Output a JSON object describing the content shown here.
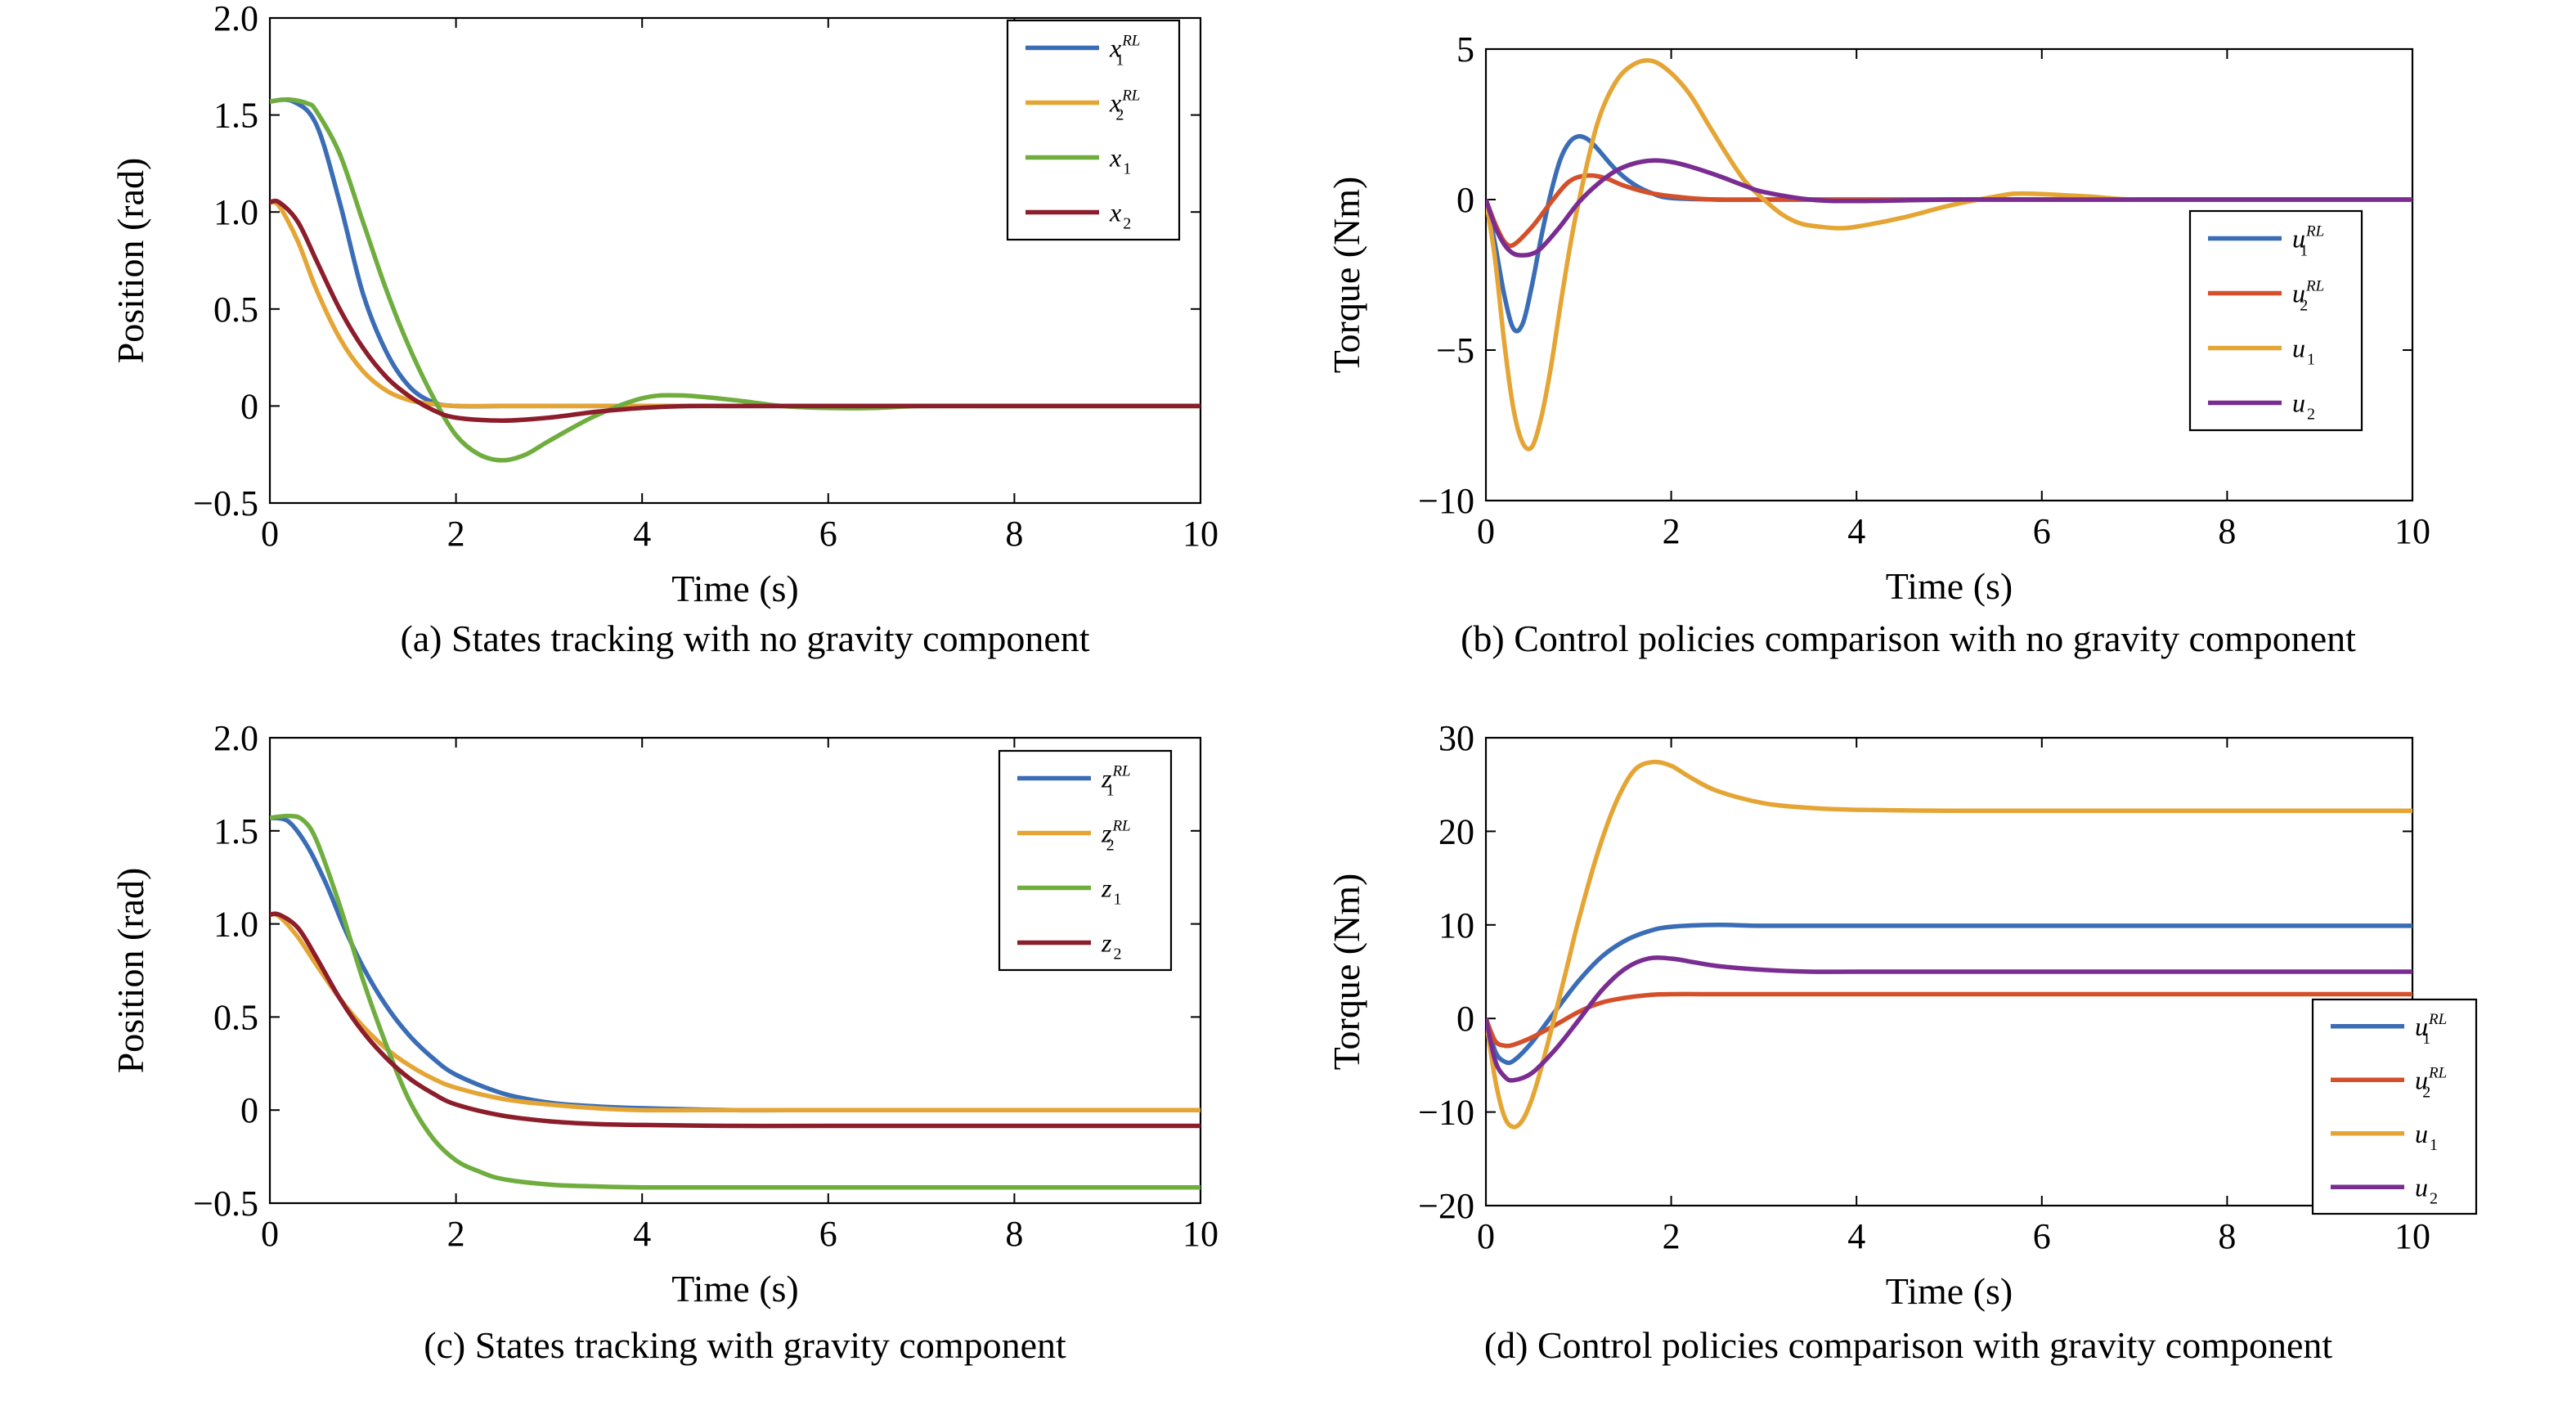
{
  "colors": {
    "blue": "#3a6db5",
    "orange": "#e5a535",
    "green": "#6fad3f",
    "darkred": "#8c1d2b",
    "red": "#d4502a",
    "purple": "#7a2d91"
  },
  "chart_data": [
    {
      "id": "a",
      "type": "line",
      "caption": "(a) States tracking with no gravity component",
      "xlabel": "Time (s)",
      "ylabel": "Position (rad)",
      "xlim": [
        0,
        10
      ],
      "ylim": [
        -0.5,
        2.0
      ],
      "xticks": [
        0,
        2,
        4,
        6,
        8,
        10
      ],
      "xtick_labels": [
        "0",
        "2",
        "4",
        "6",
        "8",
        "10"
      ],
      "yticks": [
        -0.5,
        0,
        0.5,
        1.0,
        1.5,
        2.0
      ],
      "ytick_labels": [
        "−0.5",
        "0",
        "0.5",
        "1.0",
        "1.5",
        "2.0"
      ],
      "legend_position": "top-right",
      "series": [
        {
          "name": "x",
          "sub": "1",
          "sup": "RL",
          "color": "#3a6db5",
          "x": [
            0,
            0.25,
            0.5,
            0.75,
            1.0,
            1.25,
            1.5,
            1.75,
            2.0,
            2.5,
            3.0,
            4.0,
            5.0,
            6.0,
            8.0,
            10.0
          ],
          "y": [
            1.57,
            1.57,
            1.45,
            1.05,
            0.58,
            0.28,
            0.1,
            0.02,
            0.0,
            0.0,
            0.0,
            0.0,
            0.0,
            0.0,
            0.0,
            0.0
          ]
        },
        {
          "name": "x",
          "sub": "2",
          "sup": "RL",
          "color": "#e5a535",
          "x": [
            0,
            0.1,
            0.3,
            0.5,
            0.75,
            1.0,
            1.25,
            1.5,
            1.75,
            2.0,
            2.5,
            3.0,
            4.0,
            6.0,
            8.0,
            10.0
          ],
          "y": [
            1.05,
            1.03,
            0.85,
            0.6,
            0.35,
            0.18,
            0.08,
            0.03,
            0.01,
            0.0,
            0.0,
            0.0,
            0.0,
            0.0,
            0.0,
            0.0
          ]
        },
        {
          "name": "x",
          "sub": "1",
          "sup": "",
          "color": "#6fad3f",
          "x": [
            0,
            0.2,
            0.4,
            0.5,
            0.75,
            1.0,
            1.25,
            1.5,
            1.75,
            2.0,
            2.25,
            2.5,
            2.75,
            3.0,
            3.5,
            4.0,
            4.4,
            5.0,
            5.5,
            6.0,
            6.5,
            7.0,
            8.0,
            10.0
          ],
          "y": [
            1.57,
            1.58,
            1.56,
            1.52,
            1.3,
            0.95,
            0.6,
            0.3,
            0.05,
            -0.15,
            -0.25,
            -0.28,
            -0.25,
            -0.18,
            -0.05,
            0.04,
            0.055,
            0.03,
            0.0,
            -0.01,
            -0.01,
            0.0,
            0.0,
            0.0
          ]
        },
        {
          "name": "x",
          "sub": "2",
          "sup": "",
          "color": "#8c1d2b",
          "x": [
            0,
            0.1,
            0.3,
            0.5,
            0.75,
            1.0,
            1.25,
            1.5,
            1.75,
            2.0,
            2.5,
            3.0,
            3.5,
            4.0,
            4.5,
            5.0,
            6.0,
            8.0,
            10.0
          ],
          "y": [
            1.05,
            1.05,
            0.95,
            0.75,
            0.5,
            0.3,
            0.15,
            0.05,
            -0.02,
            -0.06,
            -0.075,
            -0.06,
            -0.03,
            -0.01,
            0.0,
            0.0,
            0.0,
            0.0,
            0.0
          ]
        }
      ]
    },
    {
      "id": "b",
      "type": "line",
      "caption": "(b) Control policies comparison with no gravity component",
      "xlabel": "Time (s)",
      "ylabel": "Torque (Nm)",
      "xlim": [
        0,
        10
      ],
      "ylim": [
        -10,
        5
      ],
      "xticks": [
        0,
        2,
        4,
        6,
        8,
        10
      ],
      "xtick_labels": [
        "0",
        "2",
        "4",
        "6",
        "8",
        "10"
      ],
      "yticks": [
        -10,
        -5,
        0,
        5
      ],
      "ytick_labels": [
        "−10",
        "−5",
        "0",
        "5"
      ],
      "legend_position": "right",
      "series": [
        {
          "name": "u",
          "sub": "1",
          "sup": "RL",
          "color": "#3a6db5",
          "x": [
            0,
            0.1,
            0.2,
            0.3,
            0.4,
            0.5,
            0.6,
            0.7,
            0.8,
            0.9,
            1.0,
            1.1,
            1.2,
            1.4,
            1.6,
            1.8,
            2.0,
            2.5,
            3.0,
            4.0,
            6.0,
            8.0,
            10.0
          ],
          "y": [
            0,
            -1.5,
            -3.2,
            -4.3,
            -4.1,
            -2.8,
            -1.2,
            0.2,
            1.3,
            1.9,
            2.1,
            2.0,
            1.7,
            1.0,
            0.5,
            0.2,
            0.05,
            0.0,
            0.0,
            0.0,
            0.0,
            0.0,
            0.0
          ]
        },
        {
          "name": "u",
          "sub": "2",
          "sup": "RL",
          "color": "#d4502a",
          "x": [
            0,
            0.1,
            0.2,
            0.3,
            0.5,
            0.7,
            0.9,
            1.1,
            1.3,
            1.5,
            1.8,
            2.2,
            2.5,
            3.0,
            4.0,
            6.0,
            8.0,
            10.0
          ],
          "y": [
            0,
            -0.8,
            -1.4,
            -1.5,
            -0.9,
            -0.1,
            0.6,
            0.8,
            0.7,
            0.45,
            0.2,
            0.05,
            0.0,
            0.0,
            0.0,
            0.0,
            0.0,
            0.0
          ]
        },
        {
          "name": "u",
          "sub": "1",
          "sup": "",
          "color": "#e5a535",
          "x": [
            0,
            0.1,
            0.2,
            0.3,
            0.4,
            0.5,
            0.6,
            0.7,
            0.8,
            0.9,
            1.0,
            1.2,
            1.4,
            1.6,
            1.8,
            2.0,
            2.2,
            2.4,
            2.6,
            2.8,
            3.0,
            3.2,
            3.4,
            3.6,
            3.8,
            4.0,
            4.5,
            5.0,
            5.5,
            5.8,
            6.5,
            7.0,
            8.0,
            10.0
          ],
          "y": [
            0,
            -2.0,
            -4.8,
            -7.0,
            -8.1,
            -8.2,
            -7.2,
            -5.6,
            -3.6,
            -1.7,
            -0.1,
            2.5,
            3.9,
            4.5,
            4.6,
            4.2,
            3.5,
            2.5,
            1.5,
            0.6,
            0.0,
            -0.5,
            -0.8,
            -0.9,
            -0.95,
            -0.9,
            -0.6,
            -0.2,
            0.1,
            0.2,
            0.1,
            0.0,
            0.0,
            0.0
          ]
        },
        {
          "name": "u",
          "sub": "2",
          "sup": "",
          "color": "#7a2d91",
          "x": [
            0,
            0.1,
            0.2,
            0.3,
            0.4,
            0.5,
            0.6,
            0.8,
            1.0,
            1.2,
            1.4,
            1.6,
            1.8,
            2.0,
            2.2,
            2.5,
            2.8,
            3.0,
            3.5,
            4.0,
            5.0,
            6.0,
            8.0,
            10.0
          ],
          "y": [
            0,
            -0.9,
            -1.5,
            -1.8,
            -1.85,
            -1.8,
            -1.6,
            -0.9,
            -0.1,
            0.5,
            0.95,
            1.2,
            1.3,
            1.25,
            1.1,
            0.8,
            0.45,
            0.25,
            0.0,
            -0.05,
            0.0,
            0.0,
            0.0,
            0.0
          ]
        }
      ]
    },
    {
      "id": "c",
      "type": "line",
      "caption": "(c) States tracking with gravity component",
      "xlabel": "Time (s)",
      "ylabel": "Position (rad)",
      "xlim": [
        0,
        10
      ],
      "ylim": [
        -0.5,
        2.0
      ],
      "xticks": [
        0,
        2,
        4,
        6,
        8,
        10
      ],
      "xtick_labels": [
        "0",
        "2",
        "4",
        "6",
        "8",
        "10"
      ],
      "yticks": [
        -0.5,
        0,
        0.5,
        1.0,
        1.5,
        2.0
      ],
      "ytick_labels": [
        "−0.5",
        "0",
        "0.5",
        "1.0",
        "1.5",
        "2.0"
      ],
      "legend_position": "top-right",
      "series": [
        {
          "name": "z",
          "sub": "1",
          "sup": "RL",
          "color": "#3a6db5",
          "x": [
            0,
            0.2,
            0.4,
            0.6,
            0.8,
            1.0,
            1.25,
            1.5,
            1.75,
            2.0,
            2.5,
            3.0,
            3.5,
            4.0,
            5.0,
            6.0,
            8.0,
            10.0
          ],
          "y": [
            1.57,
            1.55,
            1.42,
            1.22,
            0.98,
            0.77,
            0.56,
            0.4,
            0.28,
            0.19,
            0.09,
            0.04,
            0.02,
            0.01,
            0.0,
            0.0,
            0.0,
            0.0
          ]
        },
        {
          "name": "z",
          "sub": "2",
          "sup": "RL",
          "color": "#e5a535",
          "x": [
            0,
            0.1,
            0.3,
            0.5,
            0.75,
            1.0,
            1.25,
            1.5,
            1.75,
            2.0,
            2.5,
            3.0,
            3.5,
            4.0,
            5.0,
            6.0,
            8.0,
            10.0
          ],
          "y": [
            1.05,
            1.04,
            0.93,
            0.78,
            0.6,
            0.45,
            0.33,
            0.24,
            0.17,
            0.12,
            0.06,
            0.03,
            0.01,
            0.0,
            0.0,
            0.0,
            0.0,
            0.0
          ]
        },
        {
          "name": "z",
          "sub": "1",
          "sup": "",
          "color": "#6fad3f",
          "x": [
            0,
            0.2,
            0.35,
            0.5,
            0.75,
            1.0,
            1.25,
            1.5,
            1.75,
            2.0,
            2.25,
            2.5,
            3.0,
            3.5,
            4.0,
            5.0,
            6.0,
            8.0,
            10.0
          ],
          "y": [
            1.57,
            1.58,
            1.56,
            1.45,
            1.1,
            0.7,
            0.35,
            0.05,
            -0.15,
            -0.27,
            -0.33,
            -0.37,
            -0.4,
            -0.41,
            -0.415,
            -0.415,
            -0.415,
            -0.415,
            -0.415
          ]
        },
        {
          "name": "z",
          "sub": "2",
          "sup": "",
          "color": "#8c1d2b",
          "x": [
            0,
            0.1,
            0.3,
            0.5,
            0.75,
            1.0,
            1.25,
            1.5,
            1.75,
            2.0,
            2.5,
            3.0,
            3.5,
            4.0,
            5.0,
            6.0,
            8.0,
            10.0
          ],
          "y": [
            1.05,
            1.05,
            0.98,
            0.82,
            0.6,
            0.42,
            0.28,
            0.17,
            0.09,
            0.03,
            -0.03,
            -0.06,
            -0.075,
            -0.08,
            -0.085,
            -0.085,
            -0.085,
            -0.085
          ]
        }
      ]
    },
    {
      "id": "d",
      "type": "line",
      "caption": "(d) Control policies comparison with gravity component",
      "xlabel": "Time (s)",
      "ylabel": "Torque (Nm)",
      "xlim": [
        0,
        10
      ],
      "ylim": [
        -20,
        30
      ],
      "xticks": [
        0,
        2,
        4,
        6,
        8,
        10
      ],
      "xtick_labels": [
        "0",
        "2",
        "4",
        "6",
        "8",
        "10"
      ],
      "yticks": [
        -20,
        -10,
        0,
        10,
        20,
        30
      ],
      "ytick_labels": [
        "−20",
        "−10",
        "0",
        "10",
        "20",
        "30"
      ],
      "legend_position": "bottom-right",
      "series": [
        {
          "name": "u",
          "sub": "1",
          "sup": "RL",
          "color": "#3a6db5",
          "x": [
            0,
            0.1,
            0.2,
            0.3,
            0.5,
            0.75,
            1.0,
            1.25,
            1.5,
            1.75,
            2.0,
            2.5,
            3.0,
            4.0,
            6.0,
            8.0,
            10.0
          ],
          "y": [
            0,
            -3.5,
            -4.6,
            -4.5,
            -2.5,
            0.8,
            4.0,
            6.6,
            8.3,
            9.3,
            9.8,
            10.0,
            9.9,
            9.9,
            9.9,
            9.9,
            9.9
          ]
        },
        {
          "name": "u",
          "sub": "2",
          "sup": "RL",
          "color": "#d4502a",
          "x": [
            0,
            0.1,
            0.2,
            0.3,
            0.5,
            0.75,
            1.0,
            1.25,
            1.5,
            1.75,
            2.0,
            2.5,
            3.0,
            4.0,
            6.0,
            8.0,
            10.0
          ],
          "y": [
            0,
            -2.4,
            -2.9,
            -2.8,
            -2.0,
            -0.7,
            0.7,
            1.7,
            2.2,
            2.5,
            2.6,
            2.6,
            2.6,
            2.6,
            2.6,
            2.6,
            2.6
          ]
        },
        {
          "name": "u",
          "sub": "1",
          "sup": "",
          "color": "#e5a535",
          "x": [
            0,
            0.1,
            0.2,
            0.3,
            0.4,
            0.5,
            0.6,
            0.75,
            0.9,
            1.0,
            1.2,
            1.4,
            1.6,
            1.8,
            2.0,
            2.2,
            2.5,
            3.0,
            3.5,
            4.0,
            5.0,
            6.0,
            8.0,
            10.0
          ],
          "y": [
            0,
            -6.5,
            -10.5,
            -11.6,
            -10.8,
            -8.5,
            -5.2,
            0.5,
            6.5,
            10.5,
            17.5,
            23.0,
            26.5,
            27.4,
            27.0,
            25.8,
            24.3,
            23.0,
            22.5,
            22.3,
            22.2,
            22.2,
            22.2,
            22.2
          ]
        },
        {
          "name": "u",
          "sub": "2",
          "sup": "",
          "color": "#7a2d91",
          "x": [
            0,
            0.1,
            0.2,
            0.3,
            0.5,
            0.75,
            1.0,
            1.25,
            1.5,
            1.75,
            2.0,
            2.25,
            2.5,
            3.0,
            3.5,
            4.0,
            6.0,
            8.0,
            10.0
          ],
          "y": [
            0,
            -4.5,
            -6.2,
            -6.6,
            -5.8,
            -3.3,
            -0.2,
            3.0,
            5.3,
            6.4,
            6.4,
            6.0,
            5.6,
            5.2,
            5.0,
            5.0,
            5.0,
            5.0,
            5.0
          ]
        }
      ]
    }
  ]
}
